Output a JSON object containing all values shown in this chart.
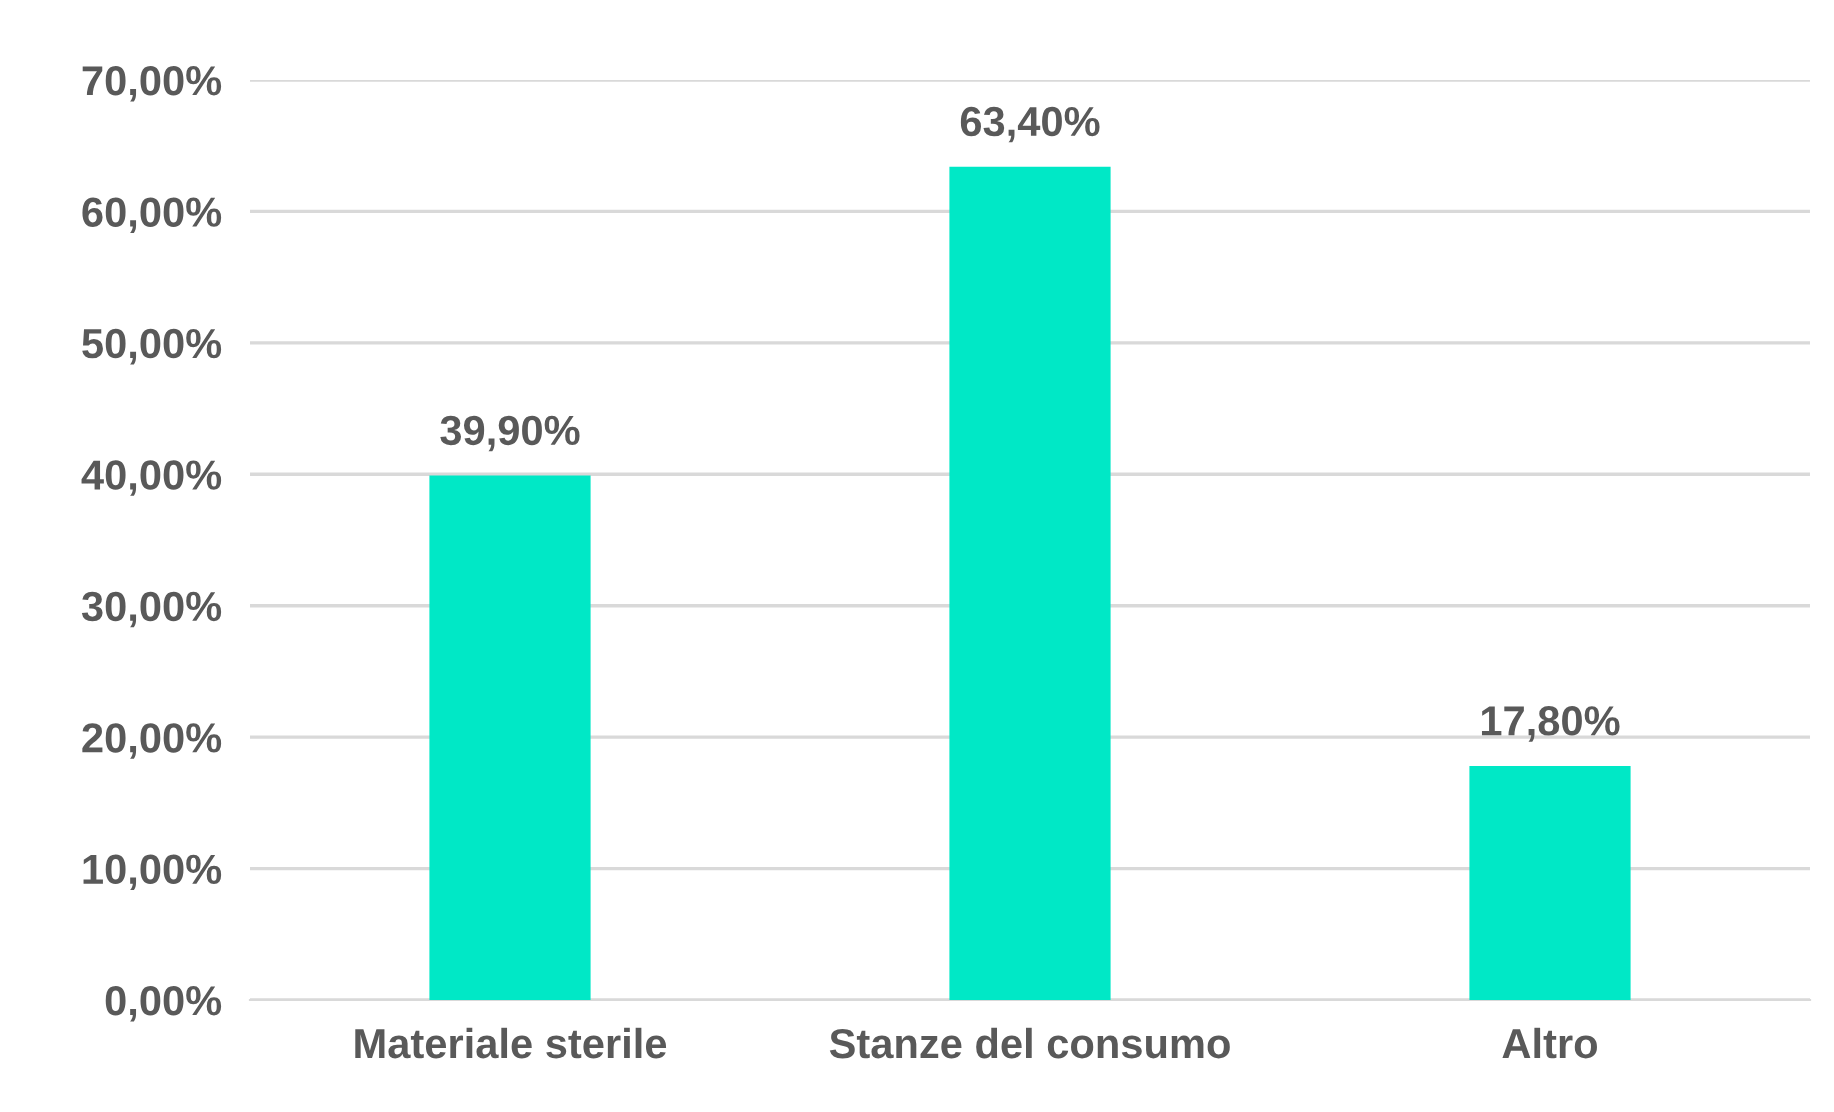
{
  "chart_data": {
    "type": "bar",
    "categories": [
      "Materiale sterile",
      "Stanze del consumo",
      "Altro"
    ],
    "values": [
      39.9,
      63.4,
      17.8
    ],
    "color": "#00e8c6",
    "value_labels": [
      "39,90%",
      "63,40%",
      "17,80%"
    ],
    "ylim": [
      0,
      70
    ],
    "yticks": [
      {
        "value": 0,
        "label": "0,00%"
      },
      {
        "value": 10,
        "label": "10,00%"
      },
      {
        "value": 20,
        "label": "20,00%"
      },
      {
        "value": 30,
        "label": "30,00%"
      },
      {
        "value": 40,
        "label": "40,00%"
      },
      {
        "value": 50,
        "label": "50,00%"
      },
      {
        "value": 60,
        "label": "60,00%"
      },
      {
        "value": 70,
        "label": "70,00%"
      }
    ],
    "grid": "y",
    "legend": false
  }
}
